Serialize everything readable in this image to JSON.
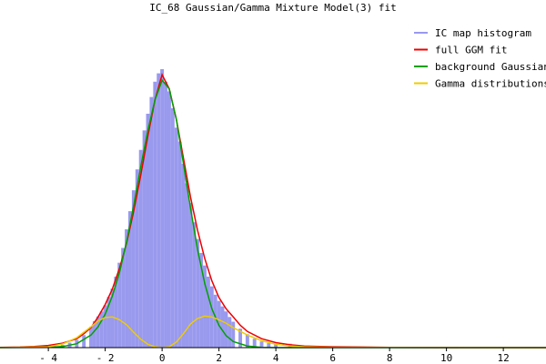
{
  "chart_data": {
    "type": "line",
    "title": "IC_68 Gaussian/Gamma Mixture Model(3) fit",
    "xlabel": "",
    "ylabel": "",
    "xlim": [
      -5.7,
      13.5
    ],
    "ylim": [
      0,
      1.0
    ],
    "x_ticks": [
      -4,
      -2,
      0,
      2,
      4,
      6,
      8,
      10,
      12
    ],
    "x_tick_labels": [
      "- 4",
      "- 2",
      "0",
      "2",
      "4",
      "6",
      "8",
      "10",
      "12"
    ],
    "grid": false,
    "legend_position": "top-right",
    "legend": [
      {
        "label": "IC map histogram",
        "color": "#9999ee"
      },
      {
        "label": "full GGM fit",
        "color": "#ee0000"
      },
      {
        "label": "background Gaussian",
        "color": "#00a000"
      },
      {
        "label": "Gamma distributions",
        "color": "#eecc00"
      }
    ],
    "histogram": {
      "color": "#9999ee",
      "bin_width": 0.125,
      "bins": [
        {
          "x": -5.0,
          "y": 0.001
        },
        {
          "x": -4.0,
          "y": 0.003
        },
        {
          "x": -3.5,
          "y": 0.01
        },
        {
          "x": -3.25,
          "y": 0.018
        },
        {
          "x": -3.0,
          "y": 0.028
        },
        {
          "x": -2.75,
          "y": 0.045
        },
        {
          "x": -2.5,
          "y": 0.075
        },
        {
          "x": -2.375,
          "y": 0.095
        },
        {
          "x": -2.25,
          "y": 0.112
        },
        {
          "x": -2.125,
          "y": 0.13
        },
        {
          "x": -2.0,
          "y": 0.152
        },
        {
          "x": -1.875,
          "y": 0.182
        },
        {
          "x": -1.75,
          "y": 0.212
        },
        {
          "x": -1.625,
          "y": 0.255
        },
        {
          "x": -1.5,
          "y": 0.305
        },
        {
          "x": -1.375,
          "y": 0.358
        },
        {
          "x": -1.25,
          "y": 0.425
        },
        {
          "x": -1.125,
          "y": 0.49
        },
        {
          "x": -1.0,
          "y": 0.565
        },
        {
          "x": -0.875,
          "y": 0.64
        },
        {
          "x": -0.75,
          "y": 0.71
        },
        {
          "x": -0.625,
          "y": 0.78
        },
        {
          "x": -0.5,
          "y": 0.84
        },
        {
          "x": -0.375,
          "y": 0.9
        },
        {
          "x": -0.25,
          "y": 0.955
        },
        {
          "x": -0.125,
          "y": 0.985
        },
        {
          "x": 0.0,
          "y": 1.0
        },
        {
          "x": 0.125,
          "y": 0.955
        },
        {
          "x": 0.25,
          "y": 0.92
        },
        {
          "x": 0.375,
          "y": 0.86
        },
        {
          "x": 0.5,
          "y": 0.79
        },
        {
          "x": 0.625,
          "y": 0.74
        },
        {
          "x": 0.75,
          "y": 0.66
        },
        {
          "x": 0.875,
          "y": 0.59
        },
        {
          "x": 1.0,
          "y": 0.52
        },
        {
          "x": 1.125,
          "y": 0.45
        },
        {
          "x": 1.25,
          "y": 0.39
        },
        {
          "x": 1.375,
          "y": 0.34
        },
        {
          "x": 1.5,
          "y": 0.295
        },
        {
          "x": 1.625,
          "y": 0.255
        },
        {
          "x": 1.75,
          "y": 0.22
        },
        {
          "x": 1.875,
          "y": 0.19
        },
        {
          "x": 2.0,
          "y": 0.168
        },
        {
          "x": 2.125,
          "y": 0.148
        },
        {
          "x": 2.25,
          "y": 0.13
        },
        {
          "x": 2.375,
          "y": 0.11
        },
        {
          "x": 2.5,
          "y": 0.093
        },
        {
          "x": 2.75,
          "y": 0.068
        },
        {
          "x": 3.0,
          "y": 0.048
        },
        {
          "x": 3.25,
          "y": 0.032
        },
        {
          "x": 3.5,
          "y": 0.022
        },
        {
          "x": 3.75,
          "y": 0.016
        },
        {
          "x": 4.0,
          "y": 0.012
        },
        {
          "x": 4.5,
          "y": 0.014
        },
        {
          "x": 5.0,
          "y": 0.004
        },
        {
          "x": 6.0,
          "y": 0.002
        },
        {
          "x": 7.0,
          "y": 0.001
        }
      ]
    },
    "series": [
      {
        "name": "full GGM fit",
        "color": "#ee0000",
        "x": [
          -5.7,
          -5.0,
          -4.5,
          -4.0,
          -3.5,
          -3.0,
          -2.75,
          -2.5,
          -2.25,
          -2.0,
          -1.75,
          -1.5,
          -1.25,
          -1.0,
          -0.75,
          -0.5,
          -0.25,
          0.0,
          0.25,
          0.5,
          0.75,
          1.0,
          1.25,
          1.5,
          1.75,
          2.0,
          2.25,
          2.5,
          2.75,
          3.0,
          3.5,
          4.0,
          4.5,
          5.0,
          6.0,
          7.0,
          8.0,
          10.0,
          12.0,
          13.5
        ],
        "y": [
          0.001,
          0.002,
          0.004,
          0.008,
          0.016,
          0.032,
          0.05,
          0.072,
          0.11,
          0.155,
          0.21,
          0.285,
          0.375,
          0.49,
          0.62,
          0.76,
          0.89,
          0.98,
          0.93,
          0.82,
          0.68,
          0.54,
          0.42,
          0.32,
          0.24,
          0.18,
          0.14,
          0.11,
          0.08,
          0.058,
          0.032,
          0.018,
          0.01,
          0.006,
          0.003,
          0.002,
          0.001,
          0.0,
          0.0,
          0.0
        ]
      },
      {
        "name": "background Gaussian",
        "color": "#00a000",
        "x": [
          -5.7,
          -4.0,
          -3.5,
          -3.0,
          -2.5,
          -2.25,
          -2.0,
          -1.75,
          -1.5,
          -1.25,
          -1.0,
          -0.75,
          -0.5,
          -0.25,
          0.0,
          0.25,
          0.5,
          0.75,
          1.0,
          1.25,
          1.5,
          1.75,
          2.0,
          2.25,
          2.5,
          3.0,
          3.5,
          4.0,
          13.5
        ],
        "y": [
          0.0,
          0.001,
          0.004,
          0.014,
          0.045,
          0.075,
          0.12,
          0.185,
          0.27,
          0.38,
          0.51,
          0.65,
          0.78,
          0.89,
          0.96,
          0.93,
          0.82,
          0.66,
          0.5,
          0.35,
          0.23,
          0.14,
          0.08,
          0.043,
          0.022,
          0.006,
          0.001,
          0.0,
          0.0
        ]
      },
      {
        "name": "Gamma distributions",
        "color": "#eecc00",
        "x": [
          -5.7,
          -4.0,
          -3.5,
          -3.0,
          -2.5,
          -2.25,
          -2.0,
          -1.75,
          -1.5,
          -1.25,
          -1.0,
          -0.75,
          -0.5,
          -0.25,
          0.0,
          0.25,
          0.5,
          0.75,
          1.0,
          1.25,
          1.5,
          1.75,
          2.0,
          2.25,
          2.5,
          3.0,
          3.5,
          4.0,
          4.5,
          5.0,
          6.0,
          13.5
        ],
        "y": [
          0.0,
          0.003,
          0.013,
          0.036,
          0.075,
          0.096,
          0.108,
          0.11,
          0.1,
          0.082,
          0.055,
          0.03,
          0.012,
          0.003,
          0.0,
          0.003,
          0.02,
          0.05,
          0.085,
          0.105,
          0.113,
          0.11,
          0.1,
          0.088,
          0.072,
          0.045,
          0.025,
          0.012,
          0.006,
          0.003,
          0.001,
          0.0
        ]
      }
    ]
  }
}
